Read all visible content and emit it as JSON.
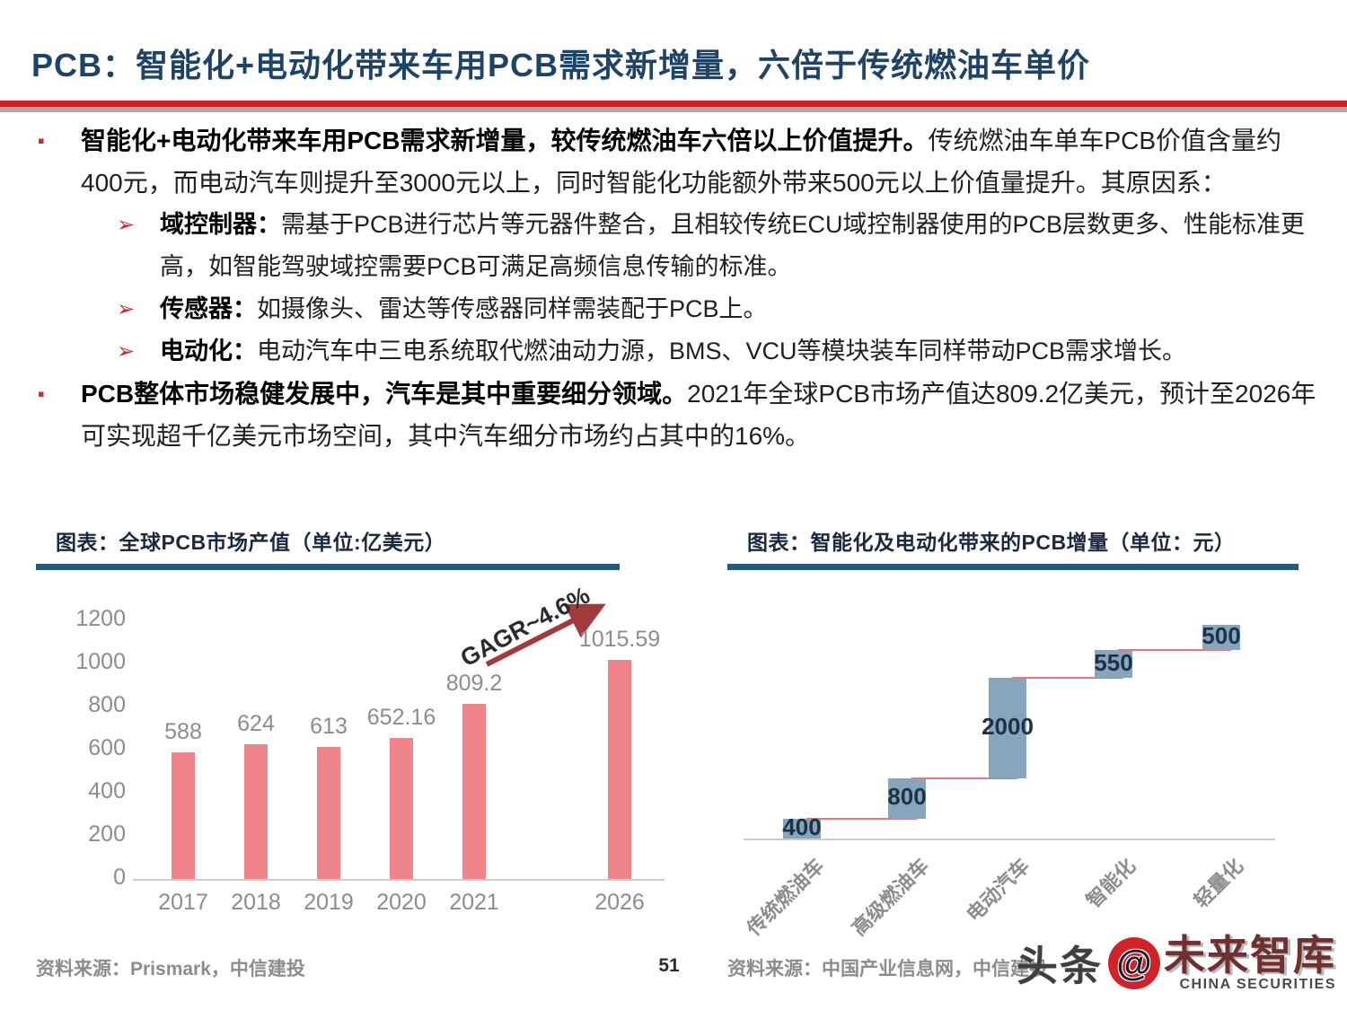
{
  "header": {
    "title": "PCB：智能化+电动化带来车用PCB需求新增量，六倍于传统燃油车单价"
  },
  "bullets": [
    {
      "marker": "▪",
      "bold": "智能化+电动化带来车用PCB需求新增量，较传统燃油车六倍以上价值提升。",
      "text": "传统燃油车单车PCB价值含量约400元，而电动汽车则提升至3000元以上，同时智能化功能额外带来500元以上价值量提升。其原因系："
    },
    {
      "marker": "➢",
      "bold": "域控制器：",
      "text": "需基于PCB进行芯片等元器件整合，且相较传统ECU域控制器使用的PCB层数更多、性能标准更高，如智能驾驶域控需要PCB可满足高频信息传输的标准。"
    },
    {
      "marker": "➢",
      "bold": "传感器：",
      "text": "如摄像头、雷达等传感器同样需装配于PCB上。"
    },
    {
      "marker": "➢",
      "bold": "电动化：",
      "text": "电动汽车中三电系统取代燃油动力源，BMS、VCU等模块装车同样带动PCB需求增长。"
    },
    {
      "marker": "▪",
      "bold": "PCB整体市场稳健发展中，汽车是其中重要细分领域。",
      "text": "2021年全球PCB市场产值达809.2亿美元，预计至2026年可实现超千亿美元市场空间，其中汽车细分市场约占其中的16%。"
    }
  ],
  "chart_data": [
    {
      "type": "bar",
      "title": "图表：全球PCB市场产值（单位:亿美元）",
      "categories": [
        "2017",
        "2018",
        "2019",
        "2020",
        "2021",
        "2026"
      ],
      "values": [
        588,
        624,
        613,
        652.16,
        809.2,
        1015.59
      ],
      "value_labels": [
        "588",
        "624",
        "613",
        "652.16",
        "809.2",
        "1015.59"
      ],
      "yticks": [
        0,
        200,
        400,
        600,
        800,
        1000,
        1200
      ],
      "ylim": [
        0,
        1200
      ],
      "annotation": "GAGR~4.6%",
      "bar_color": "#f0848b",
      "label_color": "#8c8c8c",
      "grid": false,
      "legend": "none"
    },
    {
      "type": "bar",
      "variant": "waterfall",
      "title": "图表：智能化及电动化带来的PCB增量（单位：元）",
      "categories": [
        "传统燃油车",
        "高级燃油车",
        "电动汽车",
        "智能化",
        "轻量化"
      ],
      "increments": [
        400,
        800,
        2000,
        550,
        500
      ],
      "cumulative": [
        400,
        1200,
        3200,
        3750,
        4250
      ],
      "value_labels": [
        "400",
        "800",
        "2000",
        "550",
        "500"
      ],
      "bar_color": "#87a6be",
      "connector_color": "#e2767b",
      "label_color": "#1e3247",
      "grid": false,
      "legend": "none"
    }
  ],
  "footer": {
    "left_source": "资料来源：Prismark，中信建投",
    "page_number": "51",
    "right_source": "资料来源：中国产业信息网，中信建投"
  },
  "logo": {
    "prefix": "头条",
    "at": "@",
    "brand": "未来智库",
    "subtitle": "CHINA SECURITIES"
  },
  "colors": {
    "title_navy": "#1d4467",
    "rule_red": "#d01e22",
    "rule_gray": "#a8a8a8",
    "bullet_red": "#c9282d",
    "chart_header_underline": "#26597c",
    "bar_salmon": "#f0848b",
    "bar_steel_blue": "#87a6be",
    "waterfall_connector": "#e2767b",
    "gagr_arrow": "#a23a3c",
    "axis_gray": "#cbcbcb"
  }
}
